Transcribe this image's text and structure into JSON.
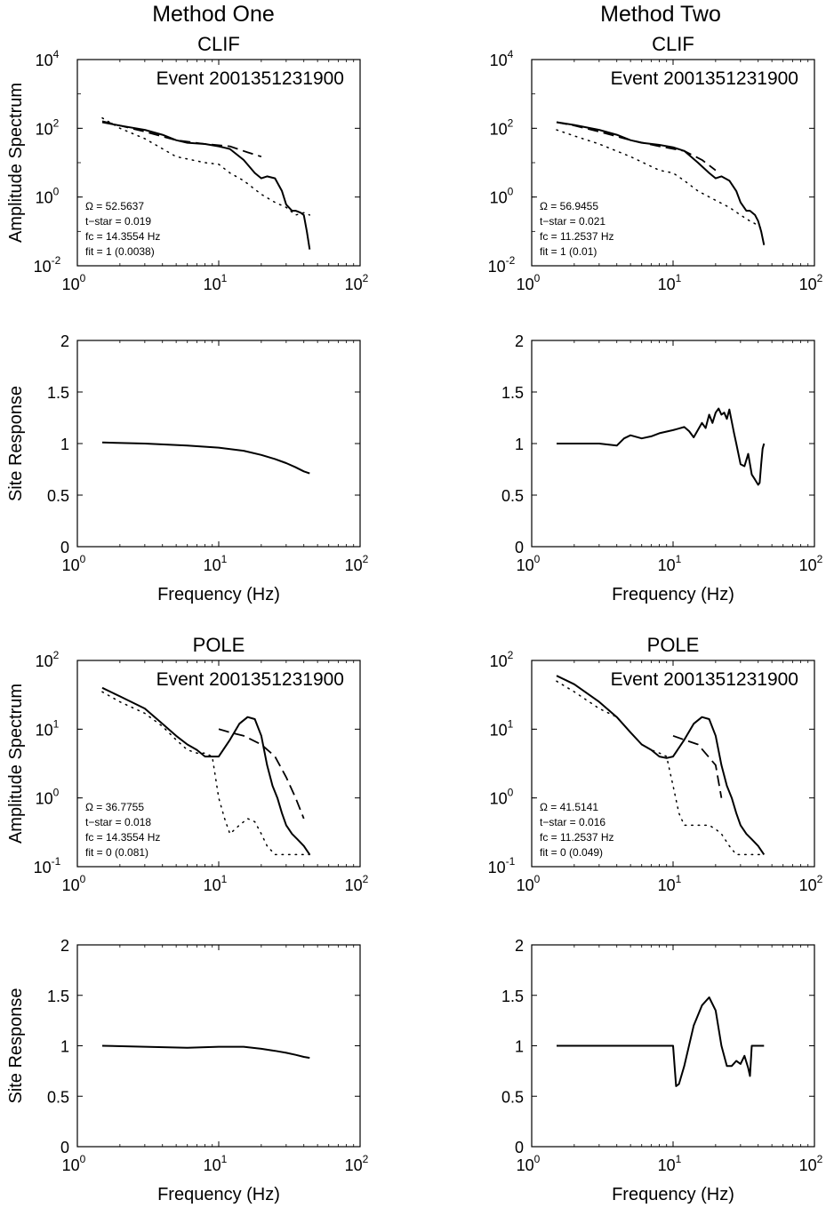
{
  "columns": [
    "Method One",
    "Method Two"
  ],
  "axis_labels": {
    "amplitude": "Amplitude Spectrum",
    "site": "Site Response",
    "frequency": "Frequency (Hz)"
  },
  "chart_data": [
    {
      "id": "clif-m1-amp",
      "type": "line",
      "column": 0,
      "row": 0,
      "kind": "amp",
      "station": "CLIF",
      "event": "Event 2001351231900",
      "xscale": "log",
      "yscale": "log",
      "xlim": [
        1,
        100
      ],
      "ylim": [
        0.01,
        10000
      ],
      "xticks": [
        1,
        10,
        100
      ],
      "yticks": [
        0.01,
        1,
        100,
        10000
      ],
      "annotation": [
        "Ω = 52.5637",
        "t−star = 0.019",
        "fc = 14.3554 Hz",
        "fit = 1 (0.0038)"
      ],
      "series": [
        {
          "style": "solid",
          "x": [
            1.5,
            2,
            3,
            4,
            5,
            6,
            8,
            10,
            12,
            15,
            18,
            20,
            22,
            25,
            28,
            30,
            33,
            35,
            38,
            40,
            42,
            44
          ],
          "y": [
            150,
            120,
            90,
            65,
            45,
            38,
            35,
            30,
            25,
            12,
            5,
            3.5,
            4,
            3.5,
            1.5,
            0.6,
            0.4,
            0.4,
            0.35,
            0.3,
            0.1,
            0.03
          ]
        },
        {
          "style": "dashed",
          "x": [
            1.5,
            2,
            3,
            5,
            8,
            12,
            16,
            20
          ],
          "y": [
            160,
            120,
            80,
            45,
            35,
            30,
            20,
            15
          ]
        },
        {
          "style": "dotted",
          "x": [
            1.5,
            2,
            3,
            5,
            8,
            10,
            12,
            15,
            20,
            25,
            30,
            35,
            40,
            44
          ],
          "y": [
            200,
            100,
            50,
            15,
            10,
            9,
            5,
            3,
            1.2,
            0.7,
            0.5,
            0.3,
            0.35,
            0.3
          ]
        }
      ]
    },
    {
      "id": "clif-m1-site",
      "type": "line",
      "column": 0,
      "row": 1,
      "kind": "site",
      "xscale": "log",
      "yscale": "linear",
      "xlim": [
        1,
        100
      ],
      "ylim": [
        0,
        2
      ],
      "xticks": [
        1,
        10,
        100
      ],
      "yticks": [
        0,
        0.5,
        1,
        1.5,
        2
      ],
      "series": [
        {
          "style": "solid",
          "x": [
            1.5,
            3,
            6,
            10,
            15,
            20,
            25,
            30,
            35,
            40,
            44
          ],
          "y": [
            1.01,
            1.0,
            0.98,
            0.96,
            0.93,
            0.89,
            0.85,
            0.81,
            0.77,
            0.73,
            0.71
          ]
        }
      ]
    },
    {
      "id": "clif-m2-amp",
      "type": "line",
      "column": 1,
      "row": 0,
      "kind": "amp",
      "station": "CLIF",
      "event": "Event 2001351231900",
      "xscale": "log",
      "yscale": "log",
      "xlim": [
        1,
        100
      ],
      "ylim": [
        0.01,
        10000
      ],
      "xticks": [
        1,
        10,
        100
      ],
      "yticks": [
        0.01,
        1,
        100,
        10000
      ],
      "annotation": [
        "Ω = 56.9455",
        "t−star = 0.021",
        "fc = 11.2537 Hz",
        "fit = 1 (0.01)"
      ],
      "series": [
        {
          "style": "solid",
          "x": [
            1.5,
            2,
            3,
            4,
            5,
            6,
            8,
            10,
            12,
            15,
            18,
            20,
            22,
            25,
            28,
            30,
            33,
            35,
            38,
            40,
            42,
            44
          ],
          "y": [
            150,
            125,
            90,
            65,
            45,
            38,
            33,
            28,
            22,
            10,
            5,
            3.5,
            4,
            3,
            1.5,
            0.7,
            0.4,
            0.4,
            0.3,
            0.2,
            0.1,
            0.04
          ]
        },
        {
          "style": "dashed",
          "x": [
            1.5,
            2,
            3,
            5,
            8,
            12,
            16,
            20
          ],
          "y": [
            150,
            120,
            80,
            45,
            30,
            22,
            12,
            6
          ]
        },
        {
          "style": "dotted",
          "x": [
            1.5,
            2,
            3,
            5,
            8,
            10,
            12,
            15,
            20,
            25,
            30,
            35,
            40,
            44
          ],
          "y": [
            90,
            60,
            35,
            15,
            6,
            5,
            3,
            1.5,
            0.8,
            0.5,
            0.3,
            0.2,
            0.15,
            0.1
          ]
        }
      ]
    },
    {
      "id": "clif-m2-site",
      "type": "line",
      "column": 1,
      "row": 1,
      "kind": "site",
      "xscale": "log",
      "yscale": "linear",
      "xlim": [
        1,
        100
      ],
      "ylim": [
        0,
        2
      ],
      "xticks": [
        1,
        10,
        100
      ],
      "yticks": [
        0,
        0.5,
        1,
        1.5,
        2
      ],
      "series": [
        {
          "style": "solid",
          "x": [
            1.5,
            2,
            3,
            4,
            4.5,
            5,
            6,
            7,
            8,
            10,
            12,
            13,
            14,
            16,
            17,
            18,
            19,
            20,
            21,
            22,
            23,
            24,
            25,
            27,
            28,
            30,
            32,
            34,
            36,
            38,
            40,
            41,
            42,
            43,
            44
          ],
          "y": [
            1.0,
            1.0,
            1.0,
            0.98,
            1.05,
            1.08,
            1.05,
            1.07,
            1.1,
            1.13,
            1.16,
            1.12,
            1.06,
            1.2,
            1.15,
            1.28,
            1.2,
            1.3,
            1.34,
            1.28,
            1.3,
            1.24,
            1.33,
            1.1,
            1.0,
            0.8,
            0.78,
            0.9,
            0.7,
            0.65,
            0.6,
            0.62,
            0.8,
            0.95,
            1.0
          ]
        }
      ]
    },
    {
      "id": "pole-m1-amp",
      "type": "line",
      "column": 0,
      "row": 2,
      "kind": "amp",
      "station": "POLE",
      "event": "Event 2001351231900",
      "xscale": "log",
      "yscale": "log",
      "xlim": [
        1,
        100
      ],
      "ylim": [
        0.1,
        100
      ],
      "xticks": [
        1,
        10,
        100
      ],
      "yticks": [
        0.1,
        1,
        10,
        100
      ],
      "annotation": [
        "Ω = 36.7755",
        "t−star = 0.018",
        "fc = 14.3554 Hz",
        "fit = 0 (0.081)"
      ],
      "series": [
        {
          "style": "solid",
          "x": [
            1.5,
            2,
            3,
            4,
            5,
            6,
            7,
            8,
            9,
            10,
            12,
            14,
            16,
            18,
            20,
            22,
            24,
            26,
            28,
            30,
            33,
            36,
            40,
            44
          ],
          "y": [
            40,
            30,
            20,
            12,
            8,
            6,
            5,
            4,
            4,
            4,
            7,
            12,
            15,
            14,
            8,
            3,
            1.5,
            1,
            0.6,
            0.4,
            0.3,
            0.25,
            0.2,
            0.15
          ]
        },
        {
          "style": "dashed",
          "x": [
            10,
            12,
            15,
            20,
            25,
            30,
            35,
            40
          ],
          "y": [
            10,
            9,
            8,
            6,
            4,
            2,
            1,
            0.5
          ]
        },
        {
          "style": "dotted",
          "x": [
            1.5,
            2,
            3,
            4,
            5,
            6,
            7,
            8,
            9,
            10,
            11,
            12,
            14,
            16,
            18,
            20,
            22,
            25,
            28,
            30,
            33,
            36,
            40,
            44
          ],
          "y": [
            35,
            25,
            17,
            11,
            7,
            5,
            4.5,
            4.5,
            4,
            1,
            0.5,
            0.3,
            0.4,
            0.5,
            0.45,
            0.3,
            0.2,
            0.15,
            0.15,
            0.15,
            0.15,
            0.15,
            0.15,
            0.15
          ]
        }
      ]
    },
    {
      "id": "pole-m1-site",
      "type": "line",
      "column": 0,
      "row": 3,
      "kind": "site",
      "xscale": "log",
      "yscale": "linear",
      "xlim": [
        1,
        100
      ],
      "ylim": [
        0,
        2
      ],
      "xticks": [
        1,
        10,
        100
      ],
      "yticks": [
        0,
        0.5,
        1,
        1.5,
        2
      ],
      "series": [
        {
          "style": "solid",
          "x": [
            1.5,
            3,
            6,
            10,
            15,
            20,
            25,
            30,
            35,
            40,
            44
          ],
          "y": [
            1.0,
            0.99,
            0.98,
            0.99,
            0.99,
            0.97,
            0.95,
            0.93,
            0.91,
            0.89,
            0.88
          ]
        }
      ]
    },
    {
      "id": "pole-m2-amp",
      "type": "line",
      "column": 1,
      "row": 2,
      "kind": "amp",
      "station": "POLE",
      "event": "Event 2001351231900",
      "xscale": "log",
      "yscale": "log",
      "xlim": [
        1,
        100
      ],
      "ylim": [
        0.1,
        100
      ],
      "xticks": [
        1,
        10,
        100
      ],
      "yticks": [
        0.1,
        1,
        10,
        100
      ],
      "annotation": [
        "Ω = 41.5141",
        "t−star = 0.016",
        "fc = 11.2537 Hz",
        "fit = 0 (0.049)"
      ],
      "series": [
        {
          "style": "solid",
          "x": [
            1.5,
            2,
            3,
            4,
            5,
            6,
            7,
            8,
            9,
            10,
            12,
            14,
            16,
            18,
            20,
            22,
            24,
            26,
            28,
            30,
            33,
            36,
            40,
            44
          ],
          "y": [
            60,
            45,
            25,
            15,
            9,
            6,
            5,
            4,
            3.8,
            4,
            7,
            12,
            15,
            14,
            8,
            3,
            1.5,
            1,
            0.6,
            0.4,
            0.3,
            0.25,
            0.2,
            0.15
          ]
        },
        {
          "style": "dashed",
          "x": [
            10,
            12,
            15,
            20,
            22
          ],
          "y": [
            8,
            7,
            6,
            3,
            1
          ]
        },
        {
          "style": "dotted",
          "x": [
            1.5,
            2,
            3,
            4,
            5,
            6,
            7,
            8,
            9,
            10,
            11,
            12,
            14,
            16,
            18,
            20,
            22,
            25,
            28,
            30,
            33,
            36,
            40,
            44
          ],
          "y": [
            50,
            35,
            20,
            15,
            9,
            6,
            5,
            4.5,
            4,
            1.5,
            0.6,
            0.4,
            0.4,
            0.4,
            0.4,
            0.35,
            0.3,
            0.2,
            0.15,
            0.15,
            0.15,
            0.15,
            0.15,
            0.15
          ]
        }
      ]
    },
    {
      "id": "pole-m2-site",
      "type": "line",
      "column": 1,
      "row": 3,
      "kind": "site",
      "xscale": "log",
      "yscale": "linear",
      "xlim": [
        1,
        100
      ],
      "ylim": [
        0,
        2
      ],
      "xticks": [
        1,
        10,
        100
      ],
      "yticks": [
        0,
        0.5,
        1,
        1.5,
        2
      ],
      "series": [
        {
          "style": "solid",
          "x": [
            1.5,
            3,
            6,
            10,
            10.5,
            11,
            12,
            14,
            16,
            18,
            20,
            22,
            24,
            26,
            28,
            30,
            32,
            34,
            35,
            36,
            38,
            40,
            42,
            44
          ],
          "y": [
            1.0,
            1.0,
            1.0,
            1.0,
            0.6,
            0.62,
            0.8,
            1.2,
            1.4,
            1.48,
            1.35,
            1.0,
            0.8,
            0.8,
            0.85,
            0.82,
            0.9,
            0.78,
            0.7,
            1.0,
            1.0,
            1.0,
            1.0,
            1.0
          ]
        }
      ]
    }
  ]
}
